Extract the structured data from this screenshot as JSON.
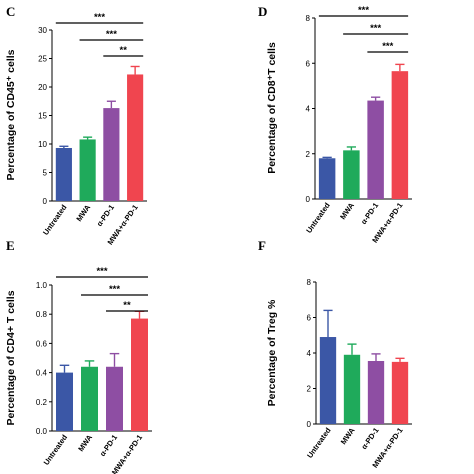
{
  "colors": {
    "untreated": "#3b57a6",
    "mwa": "#1faa5b",
    "apd1": "#8e4ea3",
    "combo": "#f0454f",
    "ink": "#000000"
  },
  "chart_data": [
    {
      "panel": "C",
      "type": "bar",
      "ylabel": "Percentage of CD45⁺ cells",
      "categories": [
        "Untreated",
        "MWA",
        "α-PD-1",
        "MWA+α-PD-1"
      ],
      "values": [
        9.3,
        10.8,
        16.3,
        22.2
      ],
      "errors": [
        0.3,
        0.4,
        1.2,
        1.4
      ],
      "ylim": [
        0,
        30
      ],
      "yticks": [
        "0",
        "5",
        "10",
        "15",
        "20",
        "25",
        "30"
      ],
      "significance": [
        {
          "label": "***",
          "from": 0,
          "to": 3
        },
        {
          "label": "***",
          "from": 1,
          "to": 3
        },
        {
          "label": "**",
          "from": 2,
          "to": 3
        }
      ]
    },
    {
      "panel": "D",
      "type": "bar",
      "ylabel": "Percentage of CD8⁺T cells",
      "categories": [
        "Untreated",
        "MWA",
        "α-PD-1",
        "MWA+α-PD-1"
      ],
      "values": [
        1.8,
        2.15,
        4.35,
        5.65
      ],
      "errors": [
        0.04,
        0.15,
        0.15,
        0.3
      ],
      "ylim": [
        0,
        8
      ],
      "yticks": [
        "0",
        "2",
        "4",
        "6",
        "8"
      ],
      "significance": [
        {
          "label": "***",
          "from": 0,
          "to": 3
        },
        {
          "label": "***",
          "from": 1,
          "to": 3
        },
        {
          "label": "***",
          "from": 2,
          "to": 3
        }
      ]
    },
    {
      "panel": "E",
      "type": "bar",
      "ylabel": "Percentage of CD4+ T cells",
      "categories": [
        "Untreated",
        "MWA",
        "α-PD-1",
        "MWA+α-PD-1"
      ],
      "values": [
        0.4,
        0.44,
        0.44,
        0.77
      ],
      "errors": [
        0.05,
        0.04,
        0.09,
        0.05
      ],
      "ylim": [
        0,
        1.0
      ],
      "yticks": [
        "0.0",
        "0.2",
        "0.4",
        "0.6",
        "0.8",
        "1.0"
      ],
      "significance": [
        {
          "label": "***",
          "from": 0,
          "to": 3
        },
        {
          "label": "***",
          "from": 1,
          "to": 3
        },
        {
          "label": "**",
          "from": 2,
          "to": 3
        }
      ]
    },
    {
      "panel": "F",
      "type": "bar",
      "ylabel": "Percentage of Treg %",
      "categories": [
        "Untreated",
        "MWA",
        "α-PD-1",
        "MWA+α-PD-1"
      ],
      "values": [
        4.9,
        3.9,
        3.55,
        3.5
      ],
      "errors": [
        1.5,
        0.6,
        0.4,
        0.2
      ],
      "ylim": [
        0,
        8
      ],
      "yticks": [
        "0",
        "2",
        "4",
        "6",
        "8"
      ],
      "significance": []
    }
  ]
}
